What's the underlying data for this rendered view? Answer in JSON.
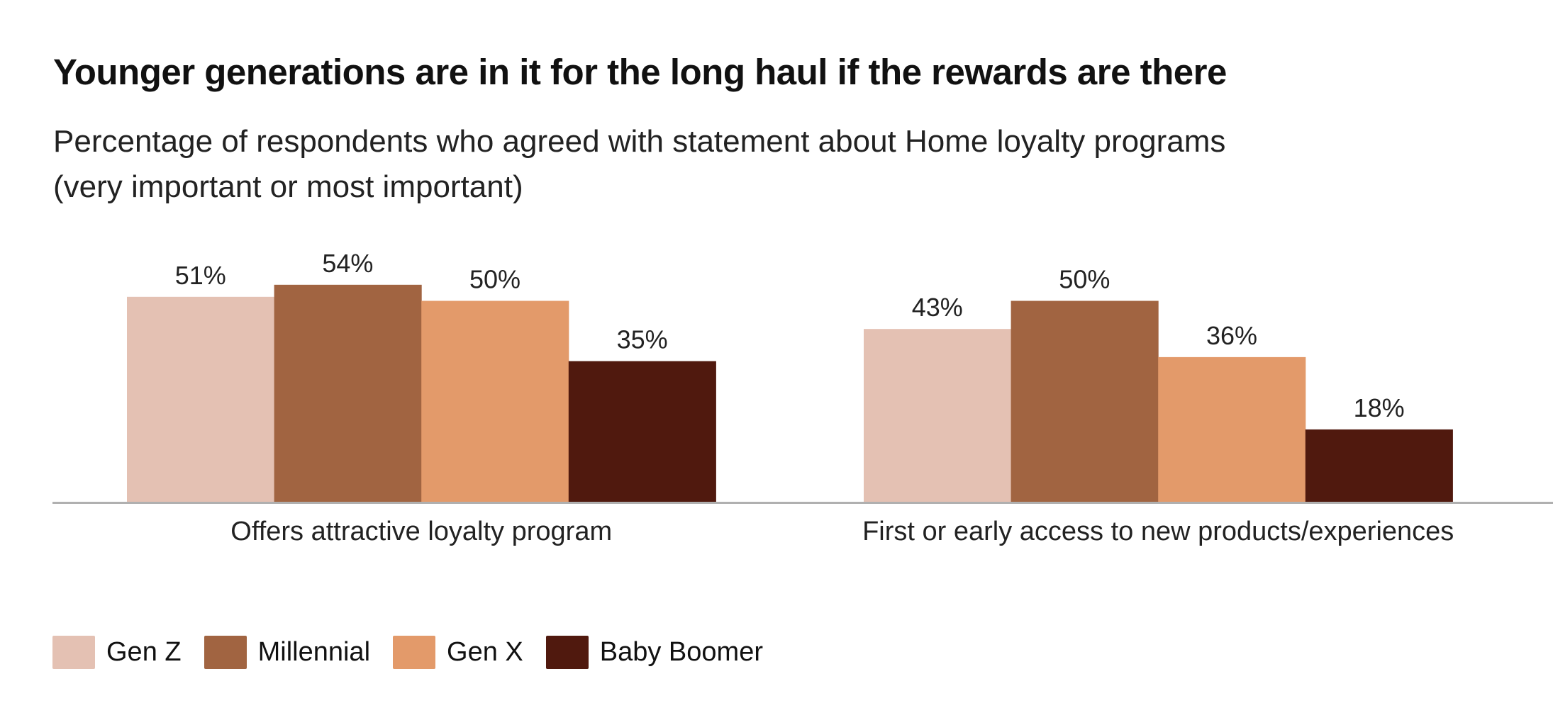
{
  "chart_data": {
    "type": "bar",
    "title": "Younger generations are in it for the long haul if the rewards are there",
    "subtitle": [
      "Percentage of respondents who agreed with statement about Home loyalty programs",
      "(very important or most important)"
    ],
    "categories": [
      "Offers attractive loyalty program",
      "First or early access to new products/experiences"
    ],
    "series": [
      {
        "name": "Gen Z",
        "color": "#e4c1b3",
        "values": [
          51,
          43
        ],
        "labels": [
          "51%",
          "43%"
        ]
      },
      {
        "name": "Millennial",
        "color": "#a16441",
        "values": [
          54,
          50
        ],
        "labels": [
          "54%",
          "50%"
        ]
      },
      {
        "name": "Gen X",
        "color": "#e39a6a",
        "values": [
          50,
          36
        ],
        "labels": [
          "50%",
          "36%"
        ]
      },
      {
        "name": "Baby Boomer",
        "color": "#50190e",
        "values": [
          35,
          18
        ],
        "labels": [
          "35%",
          "18%"
        ]
      }
    ],
    "ylim": [
      0,
      60
    ],
    "xlabel": "",
    "ylabel": "",
    "grid": false,
    "legend": "bottom-left"
  }
}
